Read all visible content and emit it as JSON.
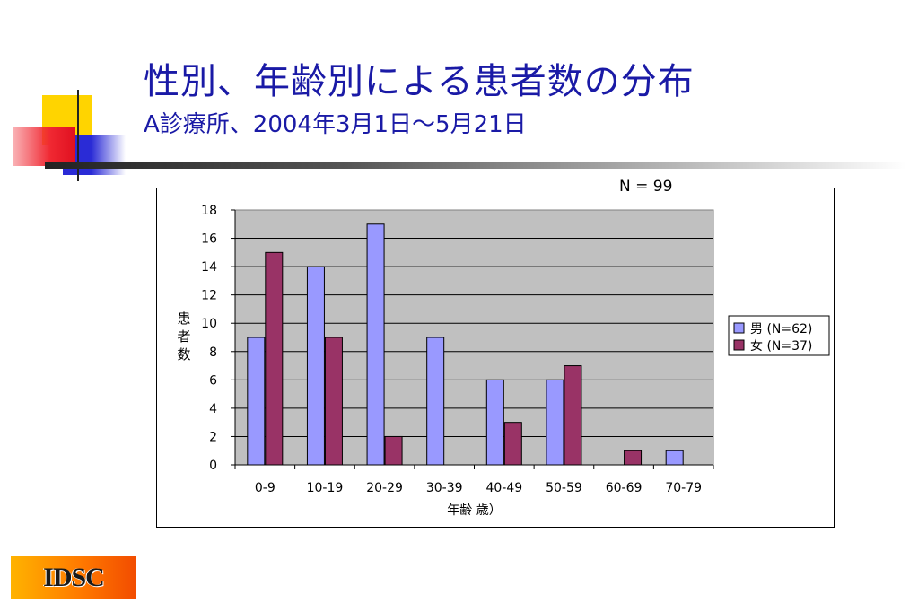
{
  "slide": {
    "title": "性別、年齢別による患者数の分布",
    "subtitle": "A診療所、2004年3月1日～5月21日",
    "n_label": "N = 99",
    "logo_text": "IDSC"
  },
  "colors": {
    "title": "#1a1aa6",
    "plot_bg": "#c0c0c0",
    "male": "#9999ff",
    "female": "#993366",
    "logo": "#ff7a00"
  },
  "chart_data": {
    "type": "bar",
    "categories": [
      "0-9",
      "10-19",
      "20-29",
      "30-39",
      "40-49",
      "50-59",
      "60-69",
      "70-79"
    ],
    "series": [
      {
        "name": "男 (N=62)",
        "values": [
          9,
          14,
          17,
          9,
          6,
          6,
          0,
          1
        ]
      },
      {
        "name": "女 (N=37)",
        "values": [
          15,
          9,
          2,
          0,
          3,
          7,
          1,
          0
        ]
      }
    ],
    "yticks": [
      0,
      2,
      4,
      6,
      8,
      10,
      12,
      14,
      16,
      18
    ],
    "ylim": [
      0,
      18
    ],
    "ylabel": "患者数",
    "xlabel": "年齢 歳）",
    "grid": true,
    "legend": "right"
  }
}
